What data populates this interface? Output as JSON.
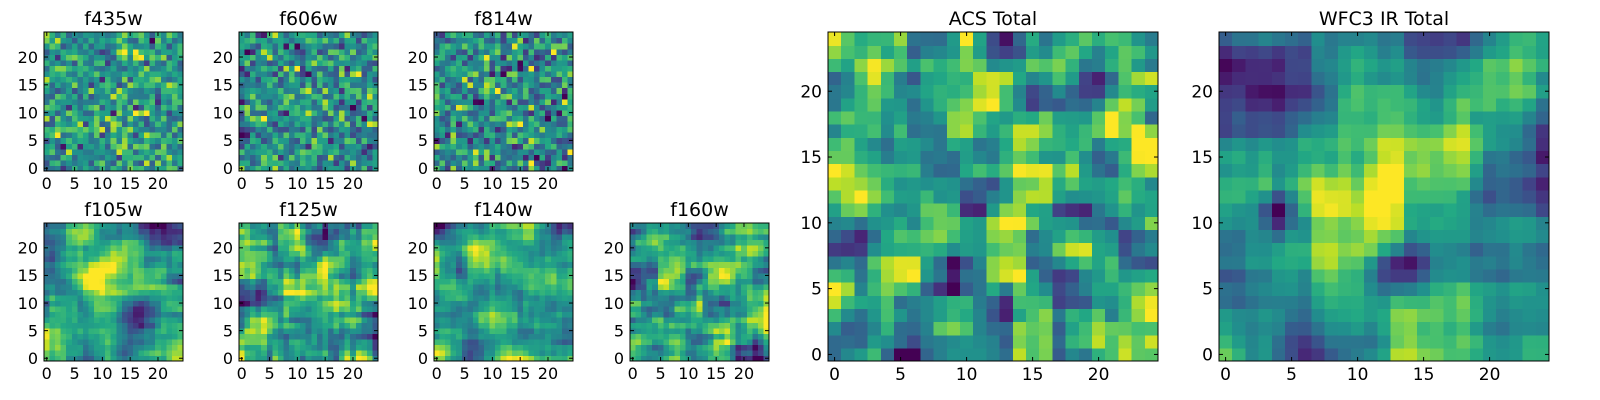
{
  "figure": {
    "colormap": "viridis",
    "colors": {
      "frame": "#000000",
      "background": "#ffffff"
    },
    "grid": false
  },
  "chart_data": [
    {
      "type": "heatmap",
      "title": "f435w",
      "shape": [
        25,
        25
      ],
      "xlim": [
        -0.5,
        24.5
      ],
      "ylim": [
        -0.5,
        24.5
      ],
      "xticks": [
        0,
        5,
        10,
        15,
        20
      ],
      "yticks": [
        0,
        5,
        10,
        15,
        20
      ],
      "values": "noisy green-yellow field, isolated dark pixels"
    },
    {
      "type": "heatmap",
      "title": "f606w",
      "shape": [
        25,
        25
      ],
      "xlim": [
        -0.5,
        24.5
      ],
      "ylim": [
        -0.5,
        24.5
      ],
      "xticks": [
        0,
        5,
        10,
        15,
        20
      ],
      "yticks": [
        0,
        5,
        10,
        15,
        20
      ],
      "values": "noisy green-yellow field, isolated dark pixels"
    },
    {
      "type": "heatmap",
      "title": "f814w",
      "shape": [
        25,
        25
      ],
      "xlim": [
        -0.5,
        24.5
      ],
      "ylim": [
        -0.5,
        24.5
      ],
      "xticks": [
        0,
        5,
        10,
        15,
        20
      ],
      "yticks": [
        0,
        5,
        10,
        15,
        20
      ],
      "values": "noisy green-yellow field, isolated dark pixels"
    },
    {
      "type": "heatmap",
      "title": "f105w",
      "shape": [
        25,
        25
      ],
      "xlim": [
        -0.5,
        24.5
      ],
      "ylim": [
        -0.5,
        24.5
      ],
      "xticks": [
        0,
        5,
        10,
        15,
        20
      ],
      "yticks": [
        0,
        5,
        10,
        15,
        20
      ],
      "values": "smoothed field, bright region near center"
    },
    {
      "type": "heatmap",
      "title": "f125w",
      "shape": [
        25,
        25
      ],
      "xlim": [
        -0.5,
        24.5
      ],
      "ylim": [
        -0.5,
        24.5
      ],
      "xticks": [
        0,
        5,
        10,
        15,
        20
      ],
      "yticks": [
        0,
        5,
        10,
        15,
        20
      ],
      "values": "smoothed field, bright region near center"
    },
    {
      "type": "heatmap",
      "title": "f140w",
      "shape": [
        25,
        25
      ],
      "xlim": [
        -0.5,
        24.5
      ],
      "ylim": [
        -0.5,
        24.5
      ],
      "xticks": [
        0,
        5,
        10,
        15,
        20
      ],
      "yticks": [
        0,
        5,
        10,
        15,
        20
      ],
      "values": "smoothed field, bright region near center"
    },
    {
      "type": "heatmap",
      "title": "f160w",
      "shape": [
        25,
        25
      ],
      "xlim": [
        -0.5,
        24.5
      ],
      "ylim": [
        -0.5,
        24.5
      ],
      "xticks": [
        0,
        5,
        10,
        15,
        20
      ],
      "yticks": [
        0,
        5,
        10,
        15,
        20
      ],
      "values": "smoothed field, bright region near center"
    },
    {
      "type": "heatmap",
      "title": "ACS Total",
      "shape": [
        25,
        25
      ],
      "xlim": [
        -0.5,
        24.5
      ],
      "ylim": [
        -0.5,
        24.5
      ],
      "xticks": [
        0,
        5,
        10,
        15,
        20
      ],
      "yticks": [
        0,
        5,
        10,
        15,
        20
      ],
      "values": "noisy field, few dark pixels"
    },
    {
      "type": "heatmap",
      "title": "WFC3 IR Total",
      "shape": [
        25,
        25
      ],
      "xlim": [
        -0.5,
        24.5
      ],
      "ylim": [
        -0.5,
        24.5
      ],
      "xticks": [
        0,
        5,
        10,
        15,
        20
      ],
      "yticks": [
        0,
        5,
        10,
        15,
        20
      ],
      "values": "smooth field, bright blob near (13,12), dark pixels near (13,7)"
    }
  ]
}
